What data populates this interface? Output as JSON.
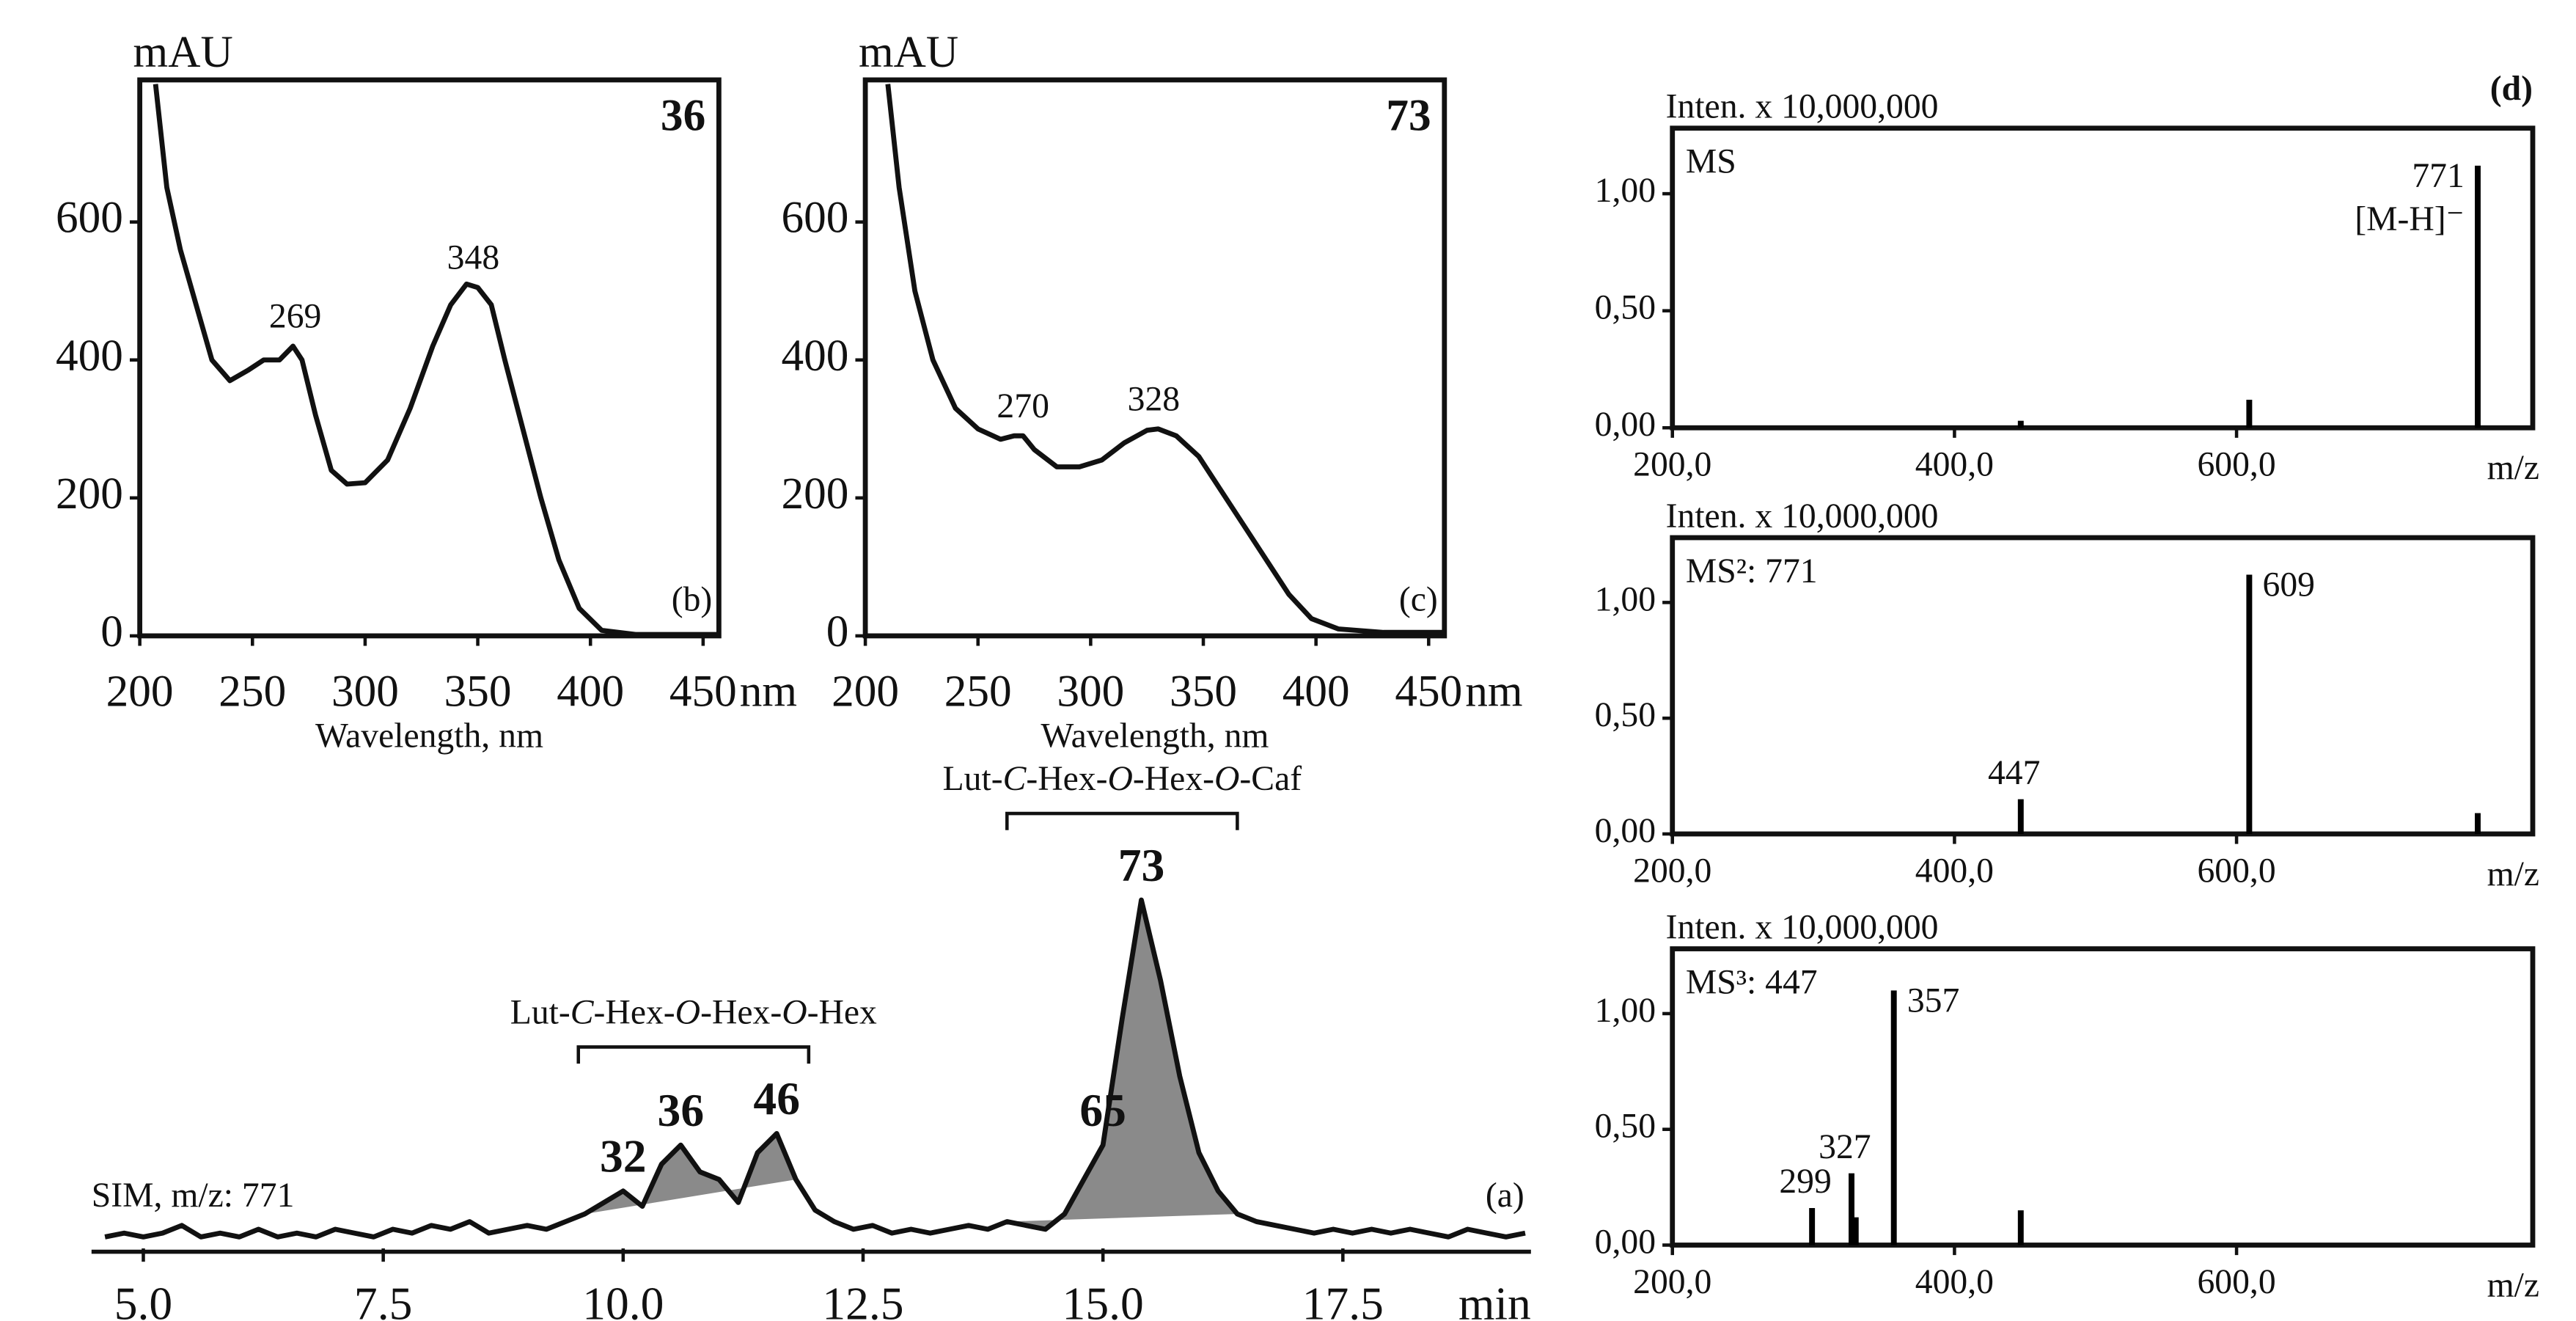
{
  "chart_data": [
    {
      "type": "line",
      "compound": "36",
      "panel_label": "(b)",
      "ylabel": "mAU",
      "xlabel": "Wavelength, nm",
      "x_unit": "nm",
      "x": [
        207,
        212,
        218,
        225,
        232,
        240,
        248,
        255,
        262,
        268,
        272,
        278,
        285,
        292,
        300,
        310,
        320,
        330,
        338,
        345,
        350,
        356,
        362,
        370,
        378,
        386,
        395,
        405,
        420,
        457
      ],
      "values": [
        800,
        650,
        560,
        480,
        400,
        370,
        385,
        400,
        400,
        420,
        400,
        320,
        240,
        220,
        222,
        255,
        330,
        420,
        480,
        510,
        505,
        480,
        400,
        300,
        200,
        110,
        40,
        8,
        2,
        2
      ],
      "color": "#111111",
      "xlim": [
        200,
        457
      ],
      "ylim": [
        0,
        806
      ],
      "xticks": [
        200,
        250,
        300,
        350,
        400,
        450
      ],
      "yticks": [
        0,
        200,
        400,
        600
      ],
      "peak_labels": [
        269,
        348
      ]
    },
    {
      "type": "line",
      "compound": "73",
      "panel_label": "(c)",
      "ylabel": "mAU",
      "xlabel": "Wavelength, nm",
      "x_unit": "nm",
      "x": [
        210,
        215,
        222,
        230,
        240,
        250,
        260,
        266,
        270,
        275,
        285,
        295,
        305,
        315,
        325,
        330,
        338,
        348,
        358,
        368,
        378,
        388,
        398,
        410,
        430,
        457
      ],
      "values": [
        800,
        650,
        500,
        400,
        330,
        300,
        285,
        290,
        290,
        270,
        245,
        245,
        255,
        280,
        298,
        300,
        290,
        260,
        210,
        160,
        110,
        60,
        25,
        10,
        5,
        5
      ],
      "color": "#111111",
      "xlim": [
        200,
        457
      ],
      "ylim": [
        0,
        806
      ],
      "xticks": [
        200,
        250,
        300,
        350,
        400,
        450
      ],
      "yticks": [
        0,
        200,
        400,
        600
      ],
      "peak_labels": [
        270,
        328
      ]
    },
    {
      "type": "line",
      "trace_label": "SIM, m/z: 771",
      "panel_label": "(a)",
      "xlabel": "min",
      "x": [
        4.6,
        4.8,
        5.0,
        5.2,
        5.4,
        5.6,
        5.8,
        6.0,
        6.2,
        6.4,
        6.6,
        6.8,
        7.0,
        7.2,
        7.4,
        7.6,
        7.8,
        8.0,
        8.2,
        8.4,
        8.6,
        8.8,
        9.0,
        9.2,
        9.4,
        9.6,
        9.8,
        10.0,
        10.2,
        10.4,
        10.6,
        10.8,
        11.0,
        11.2,
        11.4,
        11.6,
        11.8,
        12.0,
        12.2,
        12.4,
        12.6,
        12.8,
        13.0,
        13.2,
        13.4,
        13.6,
        13.8,
        14.0,
        14.2,
        14.4,
        14.6,
        14.8,
        15.0,
        15.2,
        15.4,
        15.6,
        15.8,
        16.0,
        16.2,
        16.4,
        16.6,
        16.8,
        17.0,
        17.2,
        17.4,
        17.6,
        17.8,
        18.0,
        18.2,
        18.4,
        18.6,
        18.8,
        19.0,
        19.2,
        19.4
      ],
      "values": [
        3,
        4,
        3,
        4,
        6,
        3,
        4,
        3,
        5,
        3,
        4,
        3,
        5,
        4,
        3,
        5,
        4,
        6,
        5,
        7,
        4,
        5,
        6,
        5,
        7,
        9,
        12,
        15,
        11,
        22,
        27,
        20,
        18,
        12,
        25,
        30,
        18,
        10,
        7,
        5,
        6,
        4,
        5,
        4,
        5,
        6,
        5,
        7,
        6,
        5,
        9,
        18,
        27,
        60,
        91,
        70,
        45,
        25,
        15,
        9,
        7,
        6,
        5,
        4,
        5,
        4,
        5,
        4,
        5,
        4,
        3,
        5,
        4,
        3,
        4
      ],
      "color": "#111111",
      "fill": "#8a8a8a",
      "xlim": [
        4.46,
        19.46
      ],
      "ylim": [
        0,
        100
      ],
      "xticks": [
        {
          "value": 5,
          "label": "5.0"
        },
        7.5,
        {
          "value": 10,
          "label": "10.0"
        },
        12.5,
        {
          "value": 15,
          "label": "15.0"
        },
        17.5
      ],
      "peaks": [
        {
          "label": "32",
          "x": 10.0
        },
        {
          "label": "36",
          "x": 10.6
        },
        {
          "label": "46",
          "x": 11.6
        },
        {
          "label": "65",
          "x": 15.0
        },
        {
          "label": "73",
          "x": 15.4
        }
      ],
      "groups": [
        {
          "label": "Lut-C-Hex-O-Hex-O-Hex",
          "peaks": [
            "32",
            "36",
            "46"
          ]
        },
        {
          "label": "Lut-C-Hex-O-Hex-O-Caf",
          "peaks": [
            "65",
            "73"
          ]
        }
      ]
    },
    {
      "type": "bar",
      "title": "Inten. x 10,000,000",
      "mode": "MS",
      "panel_label": "(d)",
      "xlabel": "m/z",
      "x": [
        447,
        609,
        771
      ],
      "values": [
        0.03,
        0.12,
        1.12
      ],
      "color": "#000000",
      "xlim": [
        200,
        810
      ],
      "ylim": [
        0,
        1.28
      ],
      "xticks": [
        {
          "value": 200,
          "label": "200,0"
        },
        {
          "value": 400,
          "label": "400,0"
        },
        {
          "value": 600,
          "label": "600,0"
        }
      ],
      "yticks": [
        {
          "value": 0,
          "label": "0,00"
        },
        {
          "value": 0.5,
          "label": "0,50"
        },
        {
          "value": 1,
          "label": "1,00"
        }
      ],
      "peak_labels": [
        771
      ],
      "annotations": [
        {
          "text": "[M-H]⁻",
          "x": 771
        }
      ]
    },
    {
      "type": "bar",
      "title": "Inten. x 10,000,000",
      "mode": "MS²: 771",
      "xlabel": "m/z",
      "x": [
        447,
        609,
        771
      ],
      "values": [
        0.15,
        1.12,
        0.09
      ],
      "color": "#000000",
      "xlim": [
        200,
        810
      ],
      "ylim": [
        0,
        1.28
      ],
      "xticks": [
        {
          "value": 200,
          "label": "200,0"
        },
        {
          "value": 400,
          "label": "400,0"
        },
        {
          "value": 600,
          "label": "600,0"
        }
      ],
      "yticks": [
        {
          "value": 0,
          "label": "0,00"
        },
        {
          "value": 0.5,
          "label": "0,50"
        },
        {
          "value": 1,
          "label": "1,00"
        }
      ],
      "peak_labels": [
        447,
        609
      ]
    },
    {
      "type": "bar",
      "title": "Inten. x 10,000,000",
      "mode": "MS³: 447",
      "xlabel": "m/z",
      "x": [
        299,
        327,
        330,
        357,
        447
      ],
      "values": [
        0.16,
        0.31,
        0.12,
        1.1,
        0.15
      ],
      "color": "#000000",
      "xlim": [
        200,
        810
      ],
      "ylim": [
        0,
        1.28
      ],
      "xticks": [
        {
          "value": 200,
          "label": "200,0"
        },
        {
          "value": 400,
          "label": "400,0"
        },
        {
          "value": 600,
          "label": "600,0"
        }
      ],
      "yticks": [
        {
          "value": 0,
          "label": "0,00"
        },
        {
          "value": 0.5,
          "label": "0,50"
        },
        {
          "value": 1,
          "label": "1,00"
        }
      ],
      "peak_labels": [
        299,
        327,
        357
      ]
    }
  ]
}
